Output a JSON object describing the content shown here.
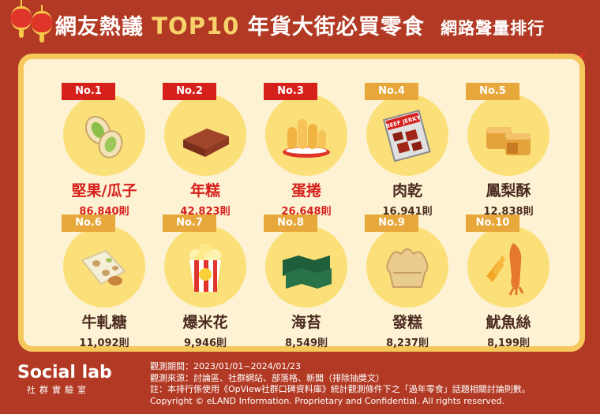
{
  "title": {
    "prefix": "網友熱議",
    "highlight": "TOP10",
    "main": "年貨大街必買零食",
    "sub": "網路聲量排行"
  },
  "chart_data": {
    "type": "table",
    "unit": "則",
    "items": [
      {
        "rank": "No.1",
        "name": "堅果/瓜子",
        "value": 86840,
        "count_label": "86,840則",
        "icon": "pistachio-icon"
      },
      {
        "rank": "No.2",
        "name": "年糕",
        "value": 42823,
        "count_label": "42,823則",
        "icon": "rice-cake-icon"
      },
      {
        "rank": "No.3",
        "name": "蛋捲",
        "value": 26648,
        "count_label": "26,648則",
        "icon": "egg-roll-icon"
      },
      {
        "rank": "No.4",
        "name": "肉乾",
        "value": 16941,
        "count_label": "16,941則",
        "icon": "beef-jerky-icon",
        "icon_text": "BEEF JERKY"
      },
      {
        "rank": "No.5",
        "name": "鳳梨酥",
        "value": 12838,
        "count_label": "12,838則",
        "icon": "pineapple-cake-icon"
      },
      {
        "rank": "No.6",
        "name": "牛軋糖",
        "value": 11092,
        "count_label": "11,092則",
        "icon": "nougat-icon"
      },
      {
        "rank": "No.7",
        "name": "爆米花",
        "value": 9946,
        "count_label": "9,946則",
        "icon": "popcorn-icon"
      },
      {
        "rank": "No.8",
        "name": "海苔",
        "value": 8549,
        "count_label": "8,549則",
        "icon": "seaweed-icon"
      },
      {
        "rank": "No.9",
        "name": "發糕",
        "value": 8237,
        "count_label": "8,237則",
        "icon": "fa-gao-icon"
      },
      {
        "rank": "No.10",
        "name": "魷魚絲",
        "value": 8199,
        "count_label": "8,199則",
        "icon": "squid-icon"
      }
    ],
    "colors": {
      "top3": "#d6201c",
      "others": "#e8a73a",
      "circle": "#fbe07a"
    }
  },
  "footer": {
    "logo_main": "Social lab",
    "logo_sub": "社群實驗室",
    "period": "觀測期間：2023/01/01~2024/01/23",
    "sources": "觀測來源：討論區、社群網站、部落格、新聞（排除抽獎文）",
    "note": "註：本排行係使用《OpView社群口碑資料庫》統計觀測條件下之「過年零食」話題相關討論則數。",
    "copyright": "Copyright © eLAND Information. Proprietary and Confidential. All rights reserved."
  }
}
